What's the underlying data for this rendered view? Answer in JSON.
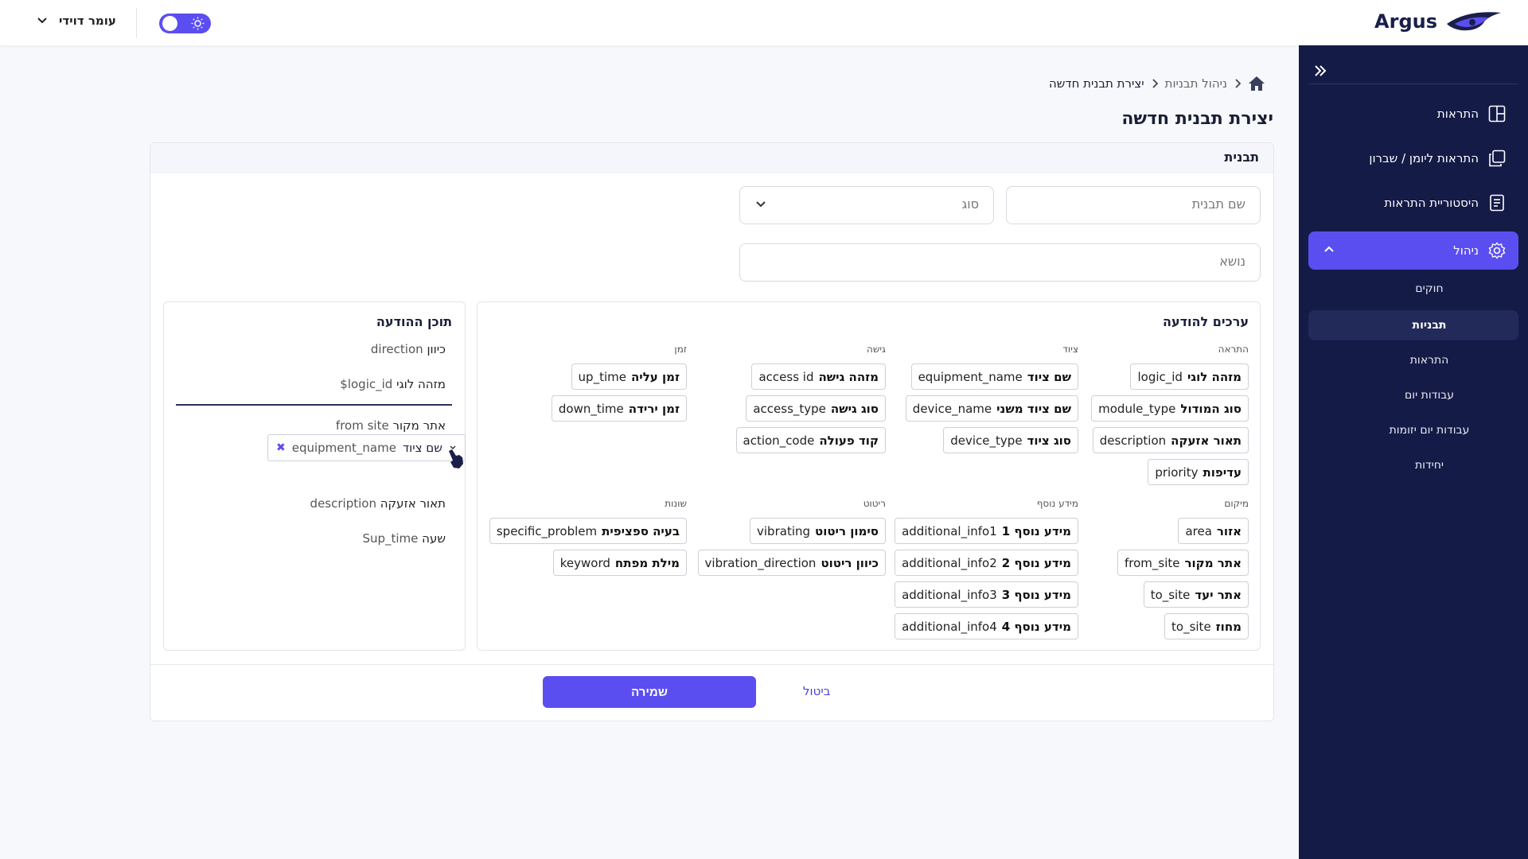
{
  "app": {
    "logo": "Argus"
  },
  "user": {
    "name": "עומר דוידי"
  },
  "sidebar": {
    "items": [
      {
        "label": "התראות"
      },
      {
        "label": "התראות ליומן / שברון"
      },
      {
        "label": "היסטוריית התראות"
      },
      {
        "label": "ניהול"
      }
    ],
    "subitems": [
      {
        "label": "חוקים"
      },
      {
        "label": "תבניות"
      },
      {
        "label": "התראות"
      },
      {
        "label": "עבודות יום"
      },
      {
        "label": "עבודות יום יזומות"
      },
      {
        "label": "יחידות"
      }
    ]
  },
  "breadcrumb": {
    "current": "יצירת תבנית חדשה",
    "parent": "ניהול תבניות"
  },
  "page": {
    "title": "יצירת תבנית חדשה"
  },
  "form": {
    "section_title": "תבנית",
    "name_placeholder": "שם תבנית",
    "type_placeholder": "סוג",
    "subject_placeholder": "נושא"
  },
  "values_panel": {
    "title": "ערכים להודעה",
    "groups": {
      "alert": {
        "label": "התראה",
        "chips": [
          {
            "label": "מזהה לוגי",
            "value": "logic_id"
          },
          {
            "label": "סוג המודול",
            "value": "module_type"
          },
          {
            "label": "תאור אזעקה",
            "value": "description"
          },
          {
            "label": "עדיפות",
            "value": "priority"
          }
        ]
      },
      "equipment": {
        "label": "ציוד",
        "chips": [
          {
            "label": "שם ציוד",
            "value": "equipment_name"
          },
          {
            "label": "שם ציוד משני",
            "value": "device_name"
          },
          {
            "label": "סוג ציוד",
            "value": "device_type"
          }
        ]
      },
      "access": {
        "label": "גישה",
        "chips": [
          {
            "label": "מזהה גישה",
            "value": "access id"
          },
          {
            "label": "סוג גישה",
            "value": "access_type"
          },
          {
            "label": "קוד פעולה",
            "value": "action_code"
          }
        ]
      },
      "time": {
        "label": "זמן",
        "chips": [
          {
            "label": "זמן עליה",
            "value": "up_time"
          },
          {
            "label": "זמן ירידה",
            "value": "down_time"
          }
        ]
      },
      "location": {
        "label": "מיקום",
        "chips": [
          {
            "label": "אזור",
            "value": "area"
          },
          {
            "label": "אתר מקור",
            "value": "from_site"
          },
          {
            "label": "אתר יעד",
            "value": "to_site"
          },
          {
            "label": "מחוז",
            "value": "to_site"
          }
        ]
      },
      "extra": {
        "label": "מידע נוסף",
        "chips": [
          {
            "label": "מידע נוסף 1",
            "value": "additional_info1"
          },
          {
            "label": "מידע נוסף 2",
            "value": "additional_info2"
          },
          {
            "label": "מידע נוסף 3",
            "value": "additional_info3"
          },
          {
            "label": "מידע נוסף 4",
            "value": "additional_info4"
          }
        ]
      },
      "vibration": {
        "label": "ריטוט",
        "chips": [
          {
            "label": "סימון ריטוט",
            "value": "vibrating"
          },
          {
            "label": "כיוון ריטוט",
            "value": "vibration_direction"
          }
        ]
      },
      "misc": {
        "label": "שונות",
        "chips": [
          {
            "label": "בעיה ספציפית",
            "value": "specific_problem"
          },
          {
            "label": "מילת מפתח",
            "value": "keyword"
          }
        ]
      }
    }
  },
  "content_panel": {
    "title": "תוכן ההודעה",
    "items": [
      {
        "label": "כיוון",
        "value": "direction"
      },
      {
        "label": "מזהה לוגי",
        "value": "logic_id$"
      },
      {
        "label": "אתר מקור",
        "value": "from site"
      },
      {
        "label": "תאור אזעקה",
        "value": "description"
      },
      {
        "label": "שעה",
        "value": "Sup_time"
      }
    ],
    "dragging_chip": {
      "label": "שם ציוד",
      "value": "equipment_name"
    }
  },
  "actions": {
    "save": "שמירה",
    "cancel": "ביטול"
  },
  "colors": {
    "accent": "#5b4ef0",
    "sidebar_bg": "#141b47"
  }
}
